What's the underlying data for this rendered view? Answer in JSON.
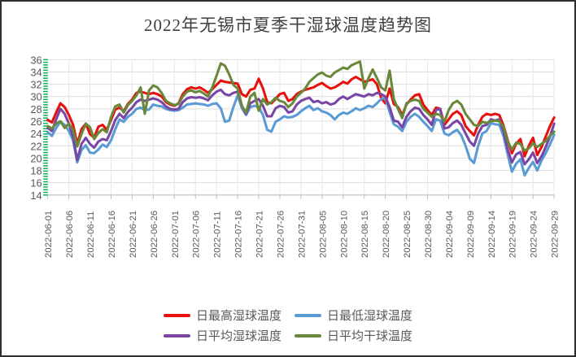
{
  "title": "2022年无锡市夏季干湿球温度趋势图",
  "colors": {
    "grid_h": "#dcdcdc",
    "grid_v": "#e7e7e7",
    "axis": "#bfbfbf",
    "ruler_ticks": "#00b050",
    "text": "#595959",
    "title_text": "#3f3f3f"
  },
  "chart_data": {
    "type": "line",
    "title": "2022年无锡市夏季干湿球温度趋势图",
    "xlabel": "",
    "ylabel": "",
    "ylim": [
      14,
      36
    ],
    "y_ticks": [
      14,
      16,
      18,
      20,
      22,
      24,
      26,
      28,
      30,
      32,
      34,
      36
    ],
    "grid": true,
    "legend_position": "bottom",
    "x_tick_labels": [
      "2022-06-01",
      "2022-06-06",
      "2022-06-11",
      "2022-06-16",
      "2022-06-21",
      "2022-06-26",
      "2022-07-01",
      "2022-07-06",
      "2022-07-11",
      "2022-07-16",
      "2022-07-21",
      "2022-07-26",
      "2022-07-31",
      "2022-08-05",
      "2022-08-10",
      "2022-08-15",
      "2022-08-20",
      "2022-08-25",
      "2022-08-30",
      "2022-09-04",
      "2022-09-09",
      "2022-09-14",
      "2022-09-19",
      "2022-09-24",
      "2022-09-29"
    ],
    "x": [
      "2022-06-01",
      "2022-06-02",
      "2022-06-03",
      "2022-06-04",
      "2022-06-05",
      "2022-06-06",
      "2022-06-07",
      "2022-06-08",
      "2022-06-09",
      "2022-06-10",
      "2022-06-11",
      "2022-06-12",
      "2022-06-13",
      "2022-06-14",
      "2022-06-15",
      "2022-06-16",
      "2022-06-17",
      "2022-06-18",
      "2022-06-19",
      "2022-06-20",
      "2022-06-21",
      "2022-06-22",
      "2022-06-23",
      "2022-06-24",
      "2022-06-25",
      "2022-06-26",
      "2022-06-27",
      "2022-06-28",
      "2022-06-29",
      "2022-06-30",
      "2022-07-01",
      "2022-07-02",
      "2022-07-03",
      "2022-07-04",
      "2022-07-05",
      "2022-07-06",
      "2022-07-07",
      "2022-07-08",
      "2022-07-09",
      "2022-07-10",
      "2022-07-11",
      "2022-07-12",
      "2022-07-13",
      "2022-07-14",
      "2022-07-15",
      "2022-07-16",
      "2022-07-17",
      "2022-07-18",
      "2022-07-19",
      "2022-07-20",
      "2022-07-21",
      "2022-07-22",
      "2022-07-23",
      "2022-07-24",
      "2022-07-25",
      "2022-07-26",
      "2022-07-27",
      "2022-07-28",
      "2022-07-29",
      "2022-07-30",
      "2022-07-31",
      "2022-08-01",
      "2022-08-02",
      "2022-08-03",
      "2022-08-04",
      "2022-08-05",
      "2022-08-06",
      "2022-08-07",
      "2022-08-08",
      "2022-08-09",
      "2022-08-10",
      "2022-08-11",
      "2022-08-12",
      "2022-08-13",
      "2022-08-14",
      "2022-08-15",
      "2022-08-16",
      "2022-08-17",
      "2022-08-18",
      "2022-08-19",
      "2022-08-20",
      "2022-08-21",
      "2022-08-22",
      "2022-08-23",
      "2022-08-24",
      "2022-08-25",
      "2022-08-26",
      "2022-08-27",
      "2022-08-28",
      "2022-08-29",
      "2022-08-30",
      "2022-08-31",
      "2022-09-01",
      "2022-09-02",
      "2022-09-03",
      "2022-09-04",
      "2022-09-05",
      "2022-09-06",
      "2022-09-07",
      "2022-09-08",
      "2022-09-09",
      "2022-09-10",
      "2022-09-11",
      "2022-09-12",
      "2022-09-13",
      "2022-09-14",
      "2022-09-15",
      "2022-09-16",
      "2022-09-17",
      "2022-09-18",
      "2022-09-19",
      "2022-09-20",
      "2022-09-21",
      "2022-09-22",
      "2022-09-23",
      "2022-09-24",
      "2022-09-25",
      "2022-09-26",
      "2022-09-27",
      "2022-09-28",
      "2022-09-29"
    ],
    "series": [
      {
        "name": "日最高湿球温度",
        "color": "#e8100c",
        "values": [
          26.2,
          25.8,
          27.4,
          28.9,
          28.3,
          27.0,
          25.4,
          22.3,
          24.7,
          25.6,
          23.9,
          23.3,
          25.1,
          25.4,
          24.6,
          26.2,
          27.9,
          28.2,
          27.6,
          28.8,
          29.5,
          30.6,
          30.8,
          30.6,
          30.4,
          30.6,
          30.4,
          30.0,
          29.1,
          28.7,
          28.5,
          28.9,
          30.4,
          31.2,
          31.5,
          31.3,
          31.5,
          31.1,
          30.6,
          31.2,
          31.9,
          32.6,
          32.4,
          32.3,
          32.2,
          32.1,
          30.4,
          30.0,
          31.1,
          31.3,
          32.9,
          31.3,
          29.1,
          28.9,
          29.6,
          30.4,
          30.6,
          29.3,
          29.6,
          30.4,
          30.8,
          31.1,
          31.3,
          31.5,
          31.9,
          32.2,
          31.7,
          31.3,
          31.5,
          31.9,
          32.4,
          32.1,
          32.8,
          33.2,
          32.8,
          32.4,
          32.6,
          32.8,
          32.0,
          29.8,
          28.9,
          31.3,
          28.8,
          28.3,
          27.0,
          28.7,
          29.5,
          30.2,
          30.4,
          28.7,
          27.8,
          27.0,
          28.2,
          28.0,
          25.4,
          26.3,
          27.2,
          27.6,
          27.0,
          25.2,
          24.4,
          23.7,
          25.4,
          26.7,
          27.2,
          27.0,
          27.2,
          27.0,
          25.3,
          22.9,
          20.8,
          22.3,
          23.1,
          20.3,
          22.0,
          23.3,
          20.5,
          21.8,
          23.5,
          25.2,
          26.6
        ]
      },
      {
        "name": "日最低湿球温度",
        "color": "#5b9bd5",
        "values": [
          24.2,
          23.6,
          24.9,
          25.9,
          25.4,
          24.4,
          22.9,
          19.3,
          21.3,
          22.1,
          20.9,
          20.8,
          21.4,
          22.2,
          21.8,
          22.9,
          24.7,
          26.3,
          25.9,
          26.7,
          27.2,
          28.0,
          28.2,
          27.8,
          27.9,
          28.7,
          28.5,
          28.4,
          28.0,
          27.8,
          27.7,
          27.8,
          28.2,
          28.7,
          28.8,
          28.9,
          28.8,
          28.7,
          28.5,
          28.8,
          28.9,
          28.1,
          25.9,
          26.1,
          28.3,
          30.2,
          28.1,
          27.0,
          28.3,
          28.5,
          28.3,
          27.0,
          24.6,
          24.3,
          25.9,
          26.3,
          26.8,
          26.6,
          26.7,
          27.0,
          27.6,
          28.1,
          28.5,
          27.8,
          28.1,
          27.6,
          27.4,
          27.0,
          26.3,
          27.0,
          27.4,
          27.2,
          27.6,
          28.1,
          27.8,
          28.1,
          28.5,
          28.3,
          28.9,
          29.6,
          29.8,
          27.5,
          25.5,
          25.1,
          24.4,
          25.9,
          26.7,
          27.2,
          26.7,
          25.9,
          25.2,
          24.4,
          26.3,
          26.1,
          24.0,
          23.7,
          24.2,
          24.6,
          23.7,
          22.0,
          19.9,
          19.2,
          22.0,
          24.0,
          24.4,
          25.7,
          25.5,
          25.4,
          23.6,
          20.6,
          17.8,
          19.1,
          19.8,
          17.2,
          18.4,
          19.4,
          18.0,
          19.6,
          20.8,
          22.2,
          23.8
        ]
      },
      {
        "name": "日平均湿球温度",
        "color": "#7a46a5",
        "values": [
          24.9,
          24.4,
          26.3,
          28.0,
          27.2,
          25.6,
          23.4,
          19.7,
          22.3,
          23.3,
          22.3,
          21.7,
          22.7,
          23.1,
          22.9,
          24.4,
          26.2,
          27.2,
          26.5,
          27.5,
          28.2,
          29.1,
          29.5,
          29.3,
          29.5,
          29.7,
          29.5,
          29.1,
          28.4,
          28.0,
          27.9,
          28.0,
          29.1,
          29.7,
          29.9,
          29.8,
          29.9,
          29.7,
          29.4,
          30.2,
          30.8,
          31.1,
          30.4,
          30.2,
          30.6,
          30.8,
          28.5,
          27.2,
          28.9,
          29.3,
          29.6,
          28.5,
          26.8,
          26.8,
          28.1,
          28.5,
          28.3,
          27.4,
          27.6,
          28.7,
          29.3,
          29.6,
          29.8,
          29.1,
          29.3,
          28.9,
          29.1,
          28.7,
          28.9,
          29.6,
          30.0,
          29.6,
          30.0,
          30.4,
          30.2,
          30.0,
          30.4,
          30.2,
          30.6,
          30.4,
          30.0,
          28.3,
          26.1,
          25.9,
          25.0,
          26.7,
          27.6,
          28.2,
          28.0,
          27.0,
          26.3,
          25.4,
          27.8,
          28.0,
          24.8,
          25.0,
          25.7,
          26.1,
          25.4,
          24.0,
          22.7,
          22.0,
          24.0,
          25.2,
          25.4,
          26.3,
          26.1,
          26.3,
          24.4,
          21.4,
          19.3,
          20.6,
          21.0,
          19.0,
          19.8,
          20.9,
          19.2,
          20.3,
          21.8,
          23.5,
          25.6
        ]
      },
      {
        "name": "日平均干球温度",
        "color": "#69883b",
        "values": [
          25.2,
          24.8,
          25.6,
          26.0,
          24.9,
          25.6,
          24.6,
          21.9,
          23.9,
          25.6,
          25.0,
          23.1,
          24.1,
          24.7,
          24.2,
          26.7,
          28.4,
          28.7,
          27.4,
          28.6,
          29.3,
          30.2,
          31.5,
          27.2,
          31.0,
          31.8,
          31.5,
          30.6,
          29.3,
          28.9,
          28.6,
          28.8,
          30.0,
          30.8,
          31.0,
          30.7,
          30.9,
          30.5,
          30.0,
          31.5,
          33.4,
          35.4,
          35.0,
          33.6,
          31.9,
          31.3,
          28.5,
          27.4,
          30.0,
          30.6,
          27.7,
          29.6,
          28.7,
          29.1,
          29.8,
          29.3,
          29.1,
          28.3,
          28.9,
          30.0,
          30.6,
          31.3,
          32.4,
          33.0,
          33.6,
          33.9,
          33.4,
          33.2,
          33.9,
          34.3,
          34.7,
          34.5,
          35.1,
          35.4,
          35.7,
          31.3,
          33.0,
          34.4,
          33.0,
          31.5,
          31.0,
          34.2,
          29.6,
          28.0,
          26.5,
          28.9,
          29.3,
          29.5,
          29.3,
          28.0,
          27.4,
          26.7,
          27.2,
          27.0,
          25.9,
          27.8,
          28.9,
          29.3,
          28.7,
          27.2,
          26.3,
          25.4,
          25.2,
          25.9,
          25.7,
          26.0,
          26.1,
          26.0,
          25.1,
          22.7,
          21.4,
          22.5,
          22.3,
          21.2,
          21.6,
          22.4,
          21.8,
          22.3,
          22.8,
          23.6,
          24.3
        ]
      }
    ]
  }
}
